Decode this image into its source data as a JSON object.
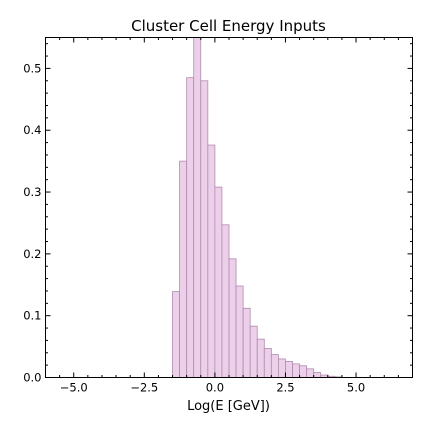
{
  "chart_data": {
    "type": "bar",
    "title": "Cluster Cell Energy Inputs",
    "xlabel": "Log(E [GeV])",
    "ylabel": "",
    "xlim": [
      -6.0,
      7.0
    ],
    "ylim": [
      0,
      0.55
    ],
    "bin_width": 0.25,
    "bin_starts": [
      -1.5,
      -1.25,
      -1.0,
      -0.75,
      -0.5,
      -0.25,
      0.0,
      0.25,
      0.5,
      0.75,
      1.0,
      1.25,
      1.5,
      1.75,
      2.0,
      2.25,
      2.5,
      2.75,
      3.0,
      3.25,
      3.5,
      3.75,
      4.0,
      4.25
    ],
    "values": [
      0.139,
      0.35,
      0.485,
      0.55,
      0.48,
      0.376,
      0.308,
      0.247,
      0.192,
      0.148,
      0.112,
      0.083,
      0.062,
      0.047,
      0.037,
      0.03,
      0.026,
      0.022,
      0.019,
      0.014,
      0.008,
      0.004,
      0.002,
      0.001
    ],
    "x_ticks": [
      -5.0,
      -2.5,
      0.0,
      2.5,
      5.0
    ],
    "x_tick_labels": [
      "−5.0",
      "−2.5",
      "0.0",
      "2.5",
      "5.0"
    ],
    "y_ticks": [
      0.0,
      0.1,
      0.2,
      0.3,
      0.4,
      0.5
    ],
    "y_tick_labels": [
      "0.0",
      "0.1",
      "0.2",
      "0.3",
      "0.4",
      "0.5"
    ],
    "bar_fill": "#ecd0ea",
    "bar_edge": "#b08aae",
    "grid": false
  }
}
